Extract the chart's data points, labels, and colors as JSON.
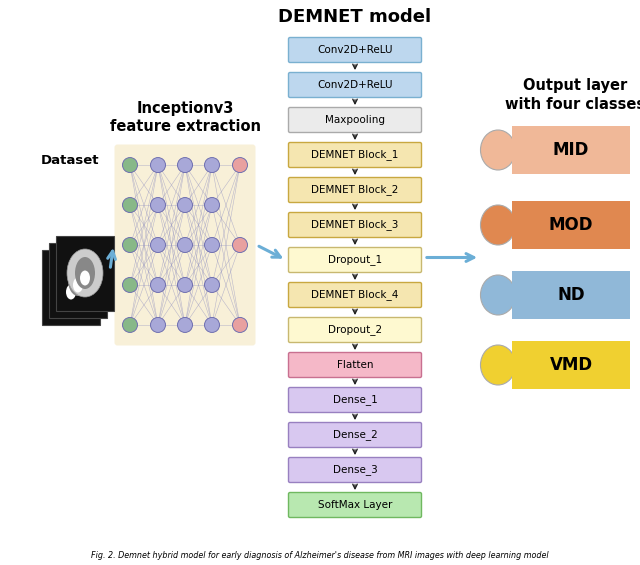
{
  "title": "DEMNET model",
  "output_title": "Output layer\nwith four classes",
  "inception_title": "Inceptionv3\nfeature extraction",
  "dataset_label": "Dataset",
  "caption": "Fig. 2. Demnet hybrid model for early diagnosis of Alzheimer's disease from MRI images with deep learning model",
  "demnet_boxes": [
    {
      "label": "Conv2D+ReLU",
      "color": "#bdd7ee",
      "border": "#7ab0d0"
    },
    {
      "label": "Conv2D+ReLU",
      "color": "#bdd7ee",
      "border": "#7ab0d0"
    },
    {
      "label": "Maxpooling",
      "color": "#ebebeb",
      "border": "#aaaaaa"
    },
    {
      "label": "DEMNET Block_1",
      "color": "#f5e6b0",
      "border": "#c8a840"
    },
    {
      "label": "DEMNET Block_2",
      "color": "#f5e6b0",
      "border": "#c8a840"
    },
    {
      "label": "DEMNET Block_3",
      "color": "#f5e6b0",
      "border": "#c8a840"
    },
    {
      "label": "Dropout_1",
      "color": "#fef9d0",
      "border": "#c8b870"
    },
    {
      "label": "DEMNET Block_4",
      "color": "#f5e6b0",
      "border": "#c8a840"
    },
    {
      "label": "Dropout_2",
      "color": "#fef9d0",
      "border": "#c8b870"
    },
    {
      "label": "Flatten",
      "color": "#f5b8c8",
      "border": "#c87090"
    },
    {
      "label": "Dense_1",
      "color": "#d8c8f0",
      "border": "#9880c0"
    },
    {
      "label": "Dense_2",
      "color": "#d8c8f0",
      "border": "#9880c0"
    },
    {
      "label": "Dense_3",
      "color": "#d8c8f0",
      "border": "#9880c0"
    },
    {
      "label": "SoftMax Layer",
      "color": "#b8e8b0",
      "border": "#70b860"
    }
  ],
  "output_classes": [
    {
      "label": "MID",
      "box_color": "#f0b898",
      "ellipse_color": "#f0b898"
    },
    {
      "label": "MOD",
      "box_color": "#e08850",
      "ellipse_color": "#e08850"
    },
    {
      "label": "ND",
      "box_color": "#90b8d8",
      "ellipse_color": "#90b8d8"
    },
    {
      "label": "VMD",
      "box_color": "#f0d030",
      "ellipse_color": "#f0d030"
    }
  ],
  "nn_node_colors": {
    "input": "#88b888",
    "hidden": "#a8a8d8",
    "output": "#e8a0a0"
  },
  "bg_color": "#ffffff",
  "arrow_color": "#6baed6"
}
